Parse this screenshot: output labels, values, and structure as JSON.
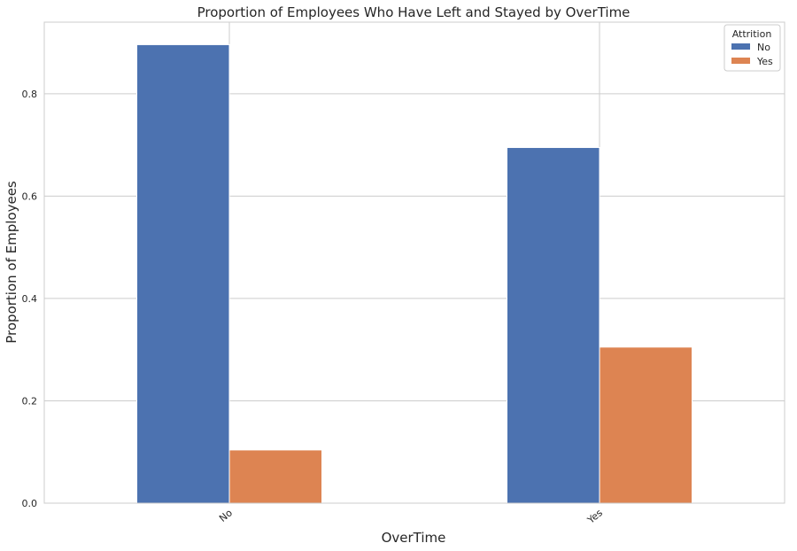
{
  "chart_data": {
    "type": "bar",
    "title": "Proportion of Employees Who Have Left and Stayed by OverTime",
    "xlabel": "OverTime",
    "ylabel": "Proportion of Employees",
    "categories": [
      "No",
      "Yes"
    ],
    "series": [
      {
        "name": "No",
        "values": [
          0.896,
          0.695
        ],
        "color": "#4c72b0"
      },
      {
        "name": "Yes",
        "values": [
          0.104,
          0.305
        ],
        "color": "#dd8452"
      }
    ],
    "yticks": [
      0.0,
      0.2,
      0.4,
      0.6,
      0.8
    ],
    "ytick_labels": [
      "0.0",
      "0.2",
      "0.4",
      "0.6",
      "0.8"
    ],
    "ylim": [
      0,
      0.94
    ],
    "grid": true,
    "legend": {
      "title": "Attrition",
      "position": "top-right"
    }
  }
}
